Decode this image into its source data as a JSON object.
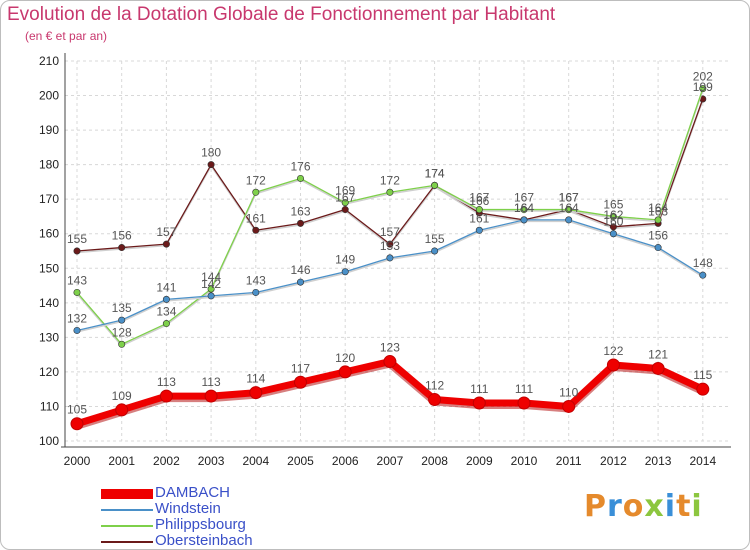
{
  "title": "Evolution de la Dotation Globale de Fonctionnement par Habitant",
  "subtitle": "(en € et par an)",
  "logo": {
    "letters": [
      "P",
      "r",
      "o",
      "x",
      "i",
      "t",
      "i"
    ],
    "colors": [
      "#e58a2c",
      "#3a8fd8",
      "#e58a2c",
      "#8cc63f",
      "#3a8fd8",
      "#e58a2c",
      "#8cc63f"
    ]
  },
  "chart_data": {
    "type": "line",
    "x": [
      "2000",
      "2001",
      "2002",
      "2003",
      "2004",
      "2005",
      "2006",
      "2007",
      "2008",
      "2009",
      "2010",
      "2011",
      "2012",
      "2013",
      "2014"
    ],
    "ylim": [
      100,
      210
    ],
    "yticks": [
      100,
      110,
      120,
      130,
      140,
      150,
      160,
      170,
      180,
      190,
      200,
      210
    ],
    "grid": true,
    "legend_position": "bottom-left",
    "series": [
      {
        "name": "DAMBACH",
        "color": "#ee0000",
        "values": [
          105,
          109,
          113,
          113,
          114,
          117,
          120,
          123,
          112,
          111,
          111,
          110,
          122,
          121,
          115
        ]
      },
      {
        "name": "Windstein",
        "color": "#4a90c8",
        "values": [
          132,
          135,
          141,
          142,
          143,
          146,
          149,
          153,
          155,
          161,
          164,
          164,
          160,
          156,
          148
        ]
      },
      {
        "name": "Philippsbourg",
        "color": "#7ed04a",
        "values": [
          143,
          128,
          134,
          144,
          172,
          176,
          169,
          172,
          174,
          167,
          167,
          167,
          165,
          164,
          202
        ]
      },
      {
        "name": "Obersteinbach",
        "color": "#6b1a1a",
        "values": [
          155,
          156,
          157,
          180,
          161,
          163,
          167,
          157,
          174,
          166,
          164,
          167,
          162,
          163,
          199
        ]
      }
    ]
  }
}
